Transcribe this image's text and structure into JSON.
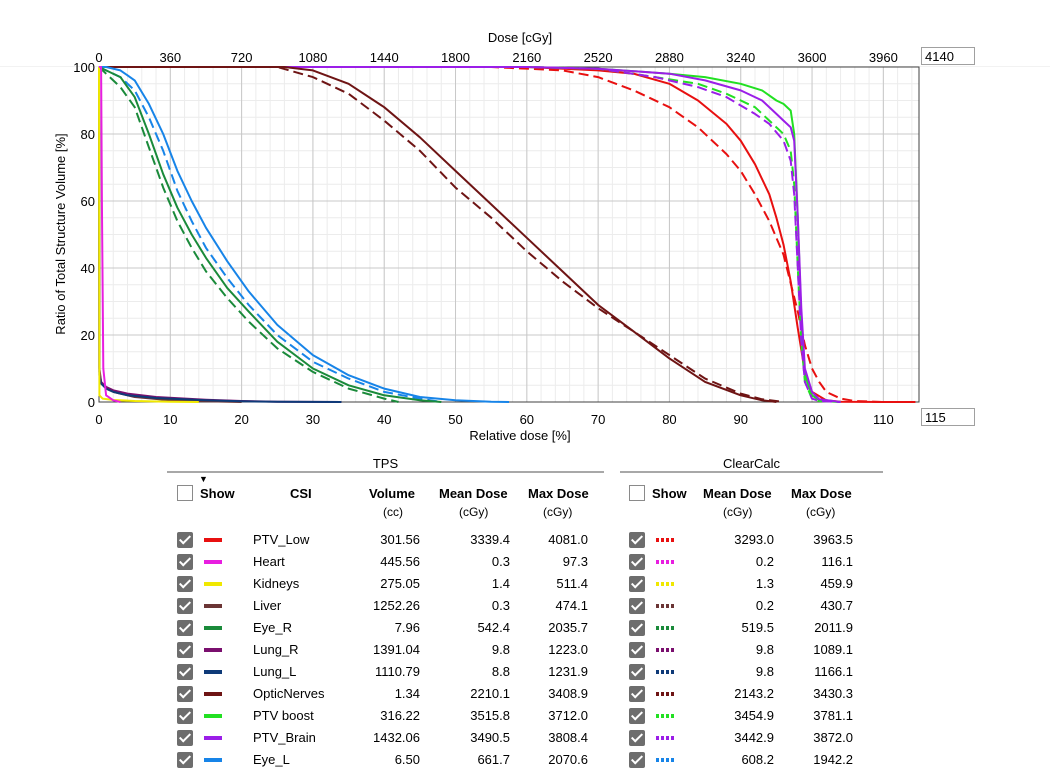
{
  "chart_data": {
    "type": "line",
    "title": "",
    "xlabel": "Relative dose [%]",
    "ylabel": "Ratio of Total Structure Volume [%]",
    "x2label": "Dose [cGy]",
    "xlim": [
      0,
      115
    ],
    "ylim": [
      0,
      100
    ],
    "x2lim": [
      0,
      4140
    ],
    "xticks": [
      0,
      10,
      20,
      30,
      40,
      50,
      60,
      70,
      80,
      90,
      100,
      110
    ],
    "yticks": [
      0,
      20,
      40,
      60,
      80,
      100
    ],
    "x2ticks": [
      0,
      360,
      720,
      1080,
      1440,
      1800,
      2160,
      2520,
      2880,
      3240,
      3600,
      3960
    ],
    "xmax_box": "115",
    "x2max_box": "4140",
    "grid": true,
    "series": [
      {
        "name": "PTV_Low TPS",
        "color": "#e81010",
        "style": "solid",
        "x": [
          0,
          60,
          70,
          75,
          80,
          84,
          88,
          90,
          92,
          94,
          95,
          96,
          97,
          98,
          99,
          100,
          102,
          104,
          110,
          114.5
        ],
        "y": [
          100,
          100,
          99,
          98,
          95,
          90,
          83,
          78,
          71,
          62,
          55,
          47,
          36,
          22,
          9,
          3,
          0.5,
          0.1,
          0,
          0
        ]
      },
      {
        "name": "PTV_Low ClearCalc",
        "color": "#e81010",
        "style": "dash",
        "x": [
          0,
          55,
          65,
          70,
          75,
          80,
          84,
          88,
          90,
          92,
          94,
          96,
          98,
          99,
          100,
          101,
          102,
          104,
          106,
          110
        ],
        "y": [
          100,
          100,
          99,
          97,
          93,
          88,
          82,
          74,
          69,
          62,
          54,
          44,
          27,
          17,
          10,
          6,
          3,
          1,
          0.3,
          0
        ]
      },
      {
        "name": "PTV boost TPS",
        "color": "#22e022",
        "style": "solid",
        "x": [
          0,
          60,
          70,
          80,
          85,
          90,
          93,
          95,
          96,
          97,
          97.5,
          98,
          98.5,
          99,
          100,
          101,
          104
        ],
        "y": [
          100,
          100,
          99.5,
          98,
          97,
          95,
          93,
          90,
          89,
          87,
          80,
          55,
          25,
          8,
          2,
          0.5,
          0
        ]
      },
      {
        "name": "PTV boost ClearCalc",
        "color": "#22e022",
        "style": "dash",
        "x": [
          0,
          60,
          70,
          78,
          84,
          88,
          92,
          94,
          96,
          97,
          97.5,
          98,
          98.5,
          99,
          100,
          101,
          104
        ],
        "y": [
          100,
          100,
          99.5,
          97,
          95,
          92,
          88,
          84,
          80,
          75,
          65,
          40,
          18,
          6,
          1,
          0.3,
          0
        ]
      },
      {
        "name": "PTV_Brain TPS",
        "color": "#9b1ee8",
        "style": "solid",
        "x": [
          0,
          60,
          70,
          80,
          85,
          90,
          93,
          95,
          96,
          97,
          97.5,
          98,
          98.5,
          99,
          100,
          101,
          104
        ],
        "y": [
          100,
          100,
          99.5,
          98,
          96,
          93,
          90,
          86,
          84,
          82,
          78,
          55,
          28,
          10,
          3,
          0.8,
          0
        ]
      },
      {
        "name": "PTV_Brain ClearCalc",
        "color": "#9b1ee8",
        "style": "dash",
        "x": [
          0,
          60,
          70,
          78,
          84,
          88,
          92,
          94,
          96,
          97,
          97.5,
          98,
          98.5,
          99,
          100,
          101,
          104
        ],
        "y": [
          100,
          100,
          99.5,
          97,
          94,
          91,
          86,
          83,
          78,
          72,
          62,
          40,
          18,
          6,
          1,
          0.3,
          0
        ]
      },
      {
        "name": "OpticNerves TPS",
        "color": "#6e1414",
        "style": "solid",
        "x": [
          0,
          26,
          30,
          35,
          40,
          45,
          50,
          55,
          60,
          65,
          70,
          75,
          80,
          85,
          90,
          93,
          95
        ],
        "y": [
          100,
          100,
          99,
          95,
          88,
          79,
          69,
          59,
          49,
          39,
          29,
          21,
          13,
          6,
          2,
          0.5,
          0
        ]
      },
      {
        "name": "OpticNerves ClearCalc",
        "color": "#6e1414",
        "style": "dash",
        "x": [
          0,
          25,
          30,
          35,
          40,
          45,
          50,
          55,
          60,
          65,
          70,
          75,
          80,
          85,
          90,
          93,
          96
        ],
        "y": [
          100,
          100,
          97,
          92,
          84,
          75,
          64,
          55,
          45,
          36,
          28,
          21,
          14,
          7,
          2.5,
          0.8,
          0
        ]
      },
      {
        "name": "Eye_L TPS",
        "color": "#1784e8",
        "style": "solid",
        "x": [
          0,
          1,
          3,
          5,
          7,
          9,
          11,
          13,
          15,
          18,
          21,
          25,
          30,
          35,
          40,
          45,
          50,
          55,
          57.5
        ],
        "y": [
          100,
          100,
          99,
          96,
          89,
          80,
          69,
          60,
          52,
          42,
          33,
          23,
          14,
          8,
          4,
          1.5,
          0.5,
          0.1,
          0
        ]
      },
      {
        "name": "Eye_L ClearCalc",
        "color": "#1784e8",
        "style": "dash",
        "x": [
          0,
          1,
          3,
          5,
          7,
          9,
          11,
          13,
          15,
          18,
          21,
          25,
          30,
          35,
          40,
          45,
          48
        ],
        "y": [
          100,
          99,
          97,
          93,
          85,
          75,
          63,
          54,
          46,
          37,
          29,
          20,
          12,
          7,
          3,
          1,
          0
        ]
      },
      {
        "name": "Eye_R TPS",
        "color": "#1a8a3a",
        "style": "solid",
        "x": [
          0,
          1,
          3,
          5,
          7,
          9,
          11,
          13,
          15,
          18,
          21,
          25,
          30,
          35,
          40,
          45,
          48
        ],
        "y": [
          100,
          99,
          97,
          91,
          80,
          68,
          58,
          50,
          43,
          34,
          27,
          18,
          10,
          5,
          2,
          0.5,
          0
        ]
      },
      {
        "name": "Eye_R ClearCalc",
        "color": "#1a8a3a",
        "style": "dash",
        "x": [
          0,
          1,
          3,
          5,
          7,
          9,
          11,
          13,
          15,
          18,
          21,
          25,
          30,
          35,
          40,
          42
        ],
        "y": [
          100,
          98,
          94,
          88,
          76,
          64,
          54,
          46,
          39,
          31,
          24,
          16,
          9,
          4,
          1,
          0
        ]
      },
      {
        "name": "Liver TPS",
        "color": "#6b3535",
        "style": "solid",
        "x": [
          0,
          0.05,
          0.3,
          1,
          2,
          3,
          5,
          10,
          15,
          20
        ],
        "y": [
          100,
          10,
          6,
          4,
          3,
          2.5,
          1.5,
          0.5,
          0.2,
          0
        ]
      },
      {
        "name": "Lung_R TPS",
        "color": "#7a0f6e",
        "style": "solid",
        "x": [
          0,
          0.05,
          0.3,
          1,
          2,
          4,
          8,
          15,
          20,
          25,
          34
        ],
        "y": [
          100,
          9,
          6,
          4.5,
          3.5,
          2.5,
          1.5,
          0.7,
          0.3,
          0.1,
          0
        ]
      },
      {
        "name": "Lung_L TPS",
        "color": "#0e3a78",
        "style": "solid",
        "x": [
          0,
          0.05,
          0.3,
          1,
          2,
          4,
          8,
          15,
          20,
          25,
          34
        ],
        "y": [
          100,
          8,
          5.5,
          4,
          3,
          2,
          1.2,
          0.5,
          0.2,
          0.1,
          0
        ]
      },
      {
        "name": "Kidneys TPS",
        "color": "#f0e800",
        "style": "solid",
        "x": [
          0,
          0.05,
          0.5,
          2,
          5,
          10,
          14
        ],
        "y": [
          100,
          2,
          1,
          0.6,
          0.3,
          0.1,
          0
        ]
      },
      {
        "name": "Heart TPS",
        "color": "#e81ee0",
        "style": "solid",
        "x": [
          0,
          0.3,
          0.4,
          0.6,
          1,
          2,
          3
        ],
        "y": [
          100,
          100,
          60,
          10,
          2,
          0.5,
          0
        ]
      }
    ]
  },
  "legend": {
    "tps_title": "TPS",
    "cc_title": "ClearCalc",
    "headers": {
      "show": "Show",
      "csi": "CSI",
      "volume": "Volume",
      "volume_unit": "(cc)",
      "mean_dose": "Mean Dose",
      "mean_unit": "(cGy)",
      "max_dose": "Max Dose",
      "max_unit": "(cGy)",
      "cc_show": "Show",
      "cc_mean": "Mean Dose",
      "cc_mean_unit": "(cGy)",
      "cc_max": "Max Dose",
      "cc_max_unit": "(cGy)"
    },
    "rows": [
      {
        "name": "PTV_Low",
        "color": "#e81010",
        "volume": "301.56",
        "mean": "3339.4",
        "max": "4081.0",
        "cc_mean": "3293.0",
        "cc_max": "3963.5"
      },
      {
        "name": "Heart",
        "color": "#e81ee0",
        "volume": "445.56",
        "mean": "0.3",
        "max": "97.3",
        "cc_mean": "0.2",
        "cc_max": "116.1"
      },
      {
        "name": "Kidneys",
        "color": "#f0e800",
        "volume": "275.05",
        "mean": "1.4",
        "max": "511.4",
        "cc_mean": "1.3",
        "cc_max": "459.9"
      },
      {
        "name": "Liver",
        "color": "#6b3535",
        "volume": "1252.26",
        "mean": "0.3",
        "max": "474.1",
        "cc_mean": "0.2",
        "cc_max": "430.7"
      },
      {
        "name": "Eye_R",
        "color": "#1a8a3a",
        "volume": "7.96",
        "mean": "542.4",
        "max": "2035.7",
        "cc_mean": "519.5",
        "cc_max": "2011.9"
      },
      {
        "name": "Lung_R",
        "color": "#7a0f6e",
        "volume": "1391.04",
        "mean": "9.8",
        "max": "1223.0",
        "cc_mean": "9.8",
        "cc_max": "1089.1"
      },
      {
        "name": "Lung_L",
        "color": "#0e3a78",
        "volume": "1110.79",
        "mean": "8.8",
        "max": "1231.9",
        "cc_mean": "9.8",
        "cc_max": "1166.1"
      },
      {
        "name": "OpticNerves",
        "color": "#6e1414",
        "volume": "1.34",
        "mean": "2210.1",
        "max": "3408.9",
        "cc_mean": "2143.2",
        "cc_max": "3430.3"
      },
      {
        "name": "PTV boost",
        "color": "#22e022",
        "volume": "316.22",
        "mean": "3515.8",
        "max": "3712.0",
        "cc_mean": "3454.9",
        "cc_max": "3781.1"
      },
      {
        "name": "PTV_Brain",
        "color": "#9b1ee8",
        "volume": "1432.06",
        "mean": "3490.5",
        "max": "3808.4",
        "cc_mean": "3442.9",
        "cc_max": "3872.0"
      },
      {
        "name": "Eye_L",
        "color": "#1784e8",
        "volume": "6.50",
        "mean": "661.7",
        "max": "2070.6",
        "cc_mean": "608.2",
        "cc_max": "1942.2"
      }
    ]
  }
}
